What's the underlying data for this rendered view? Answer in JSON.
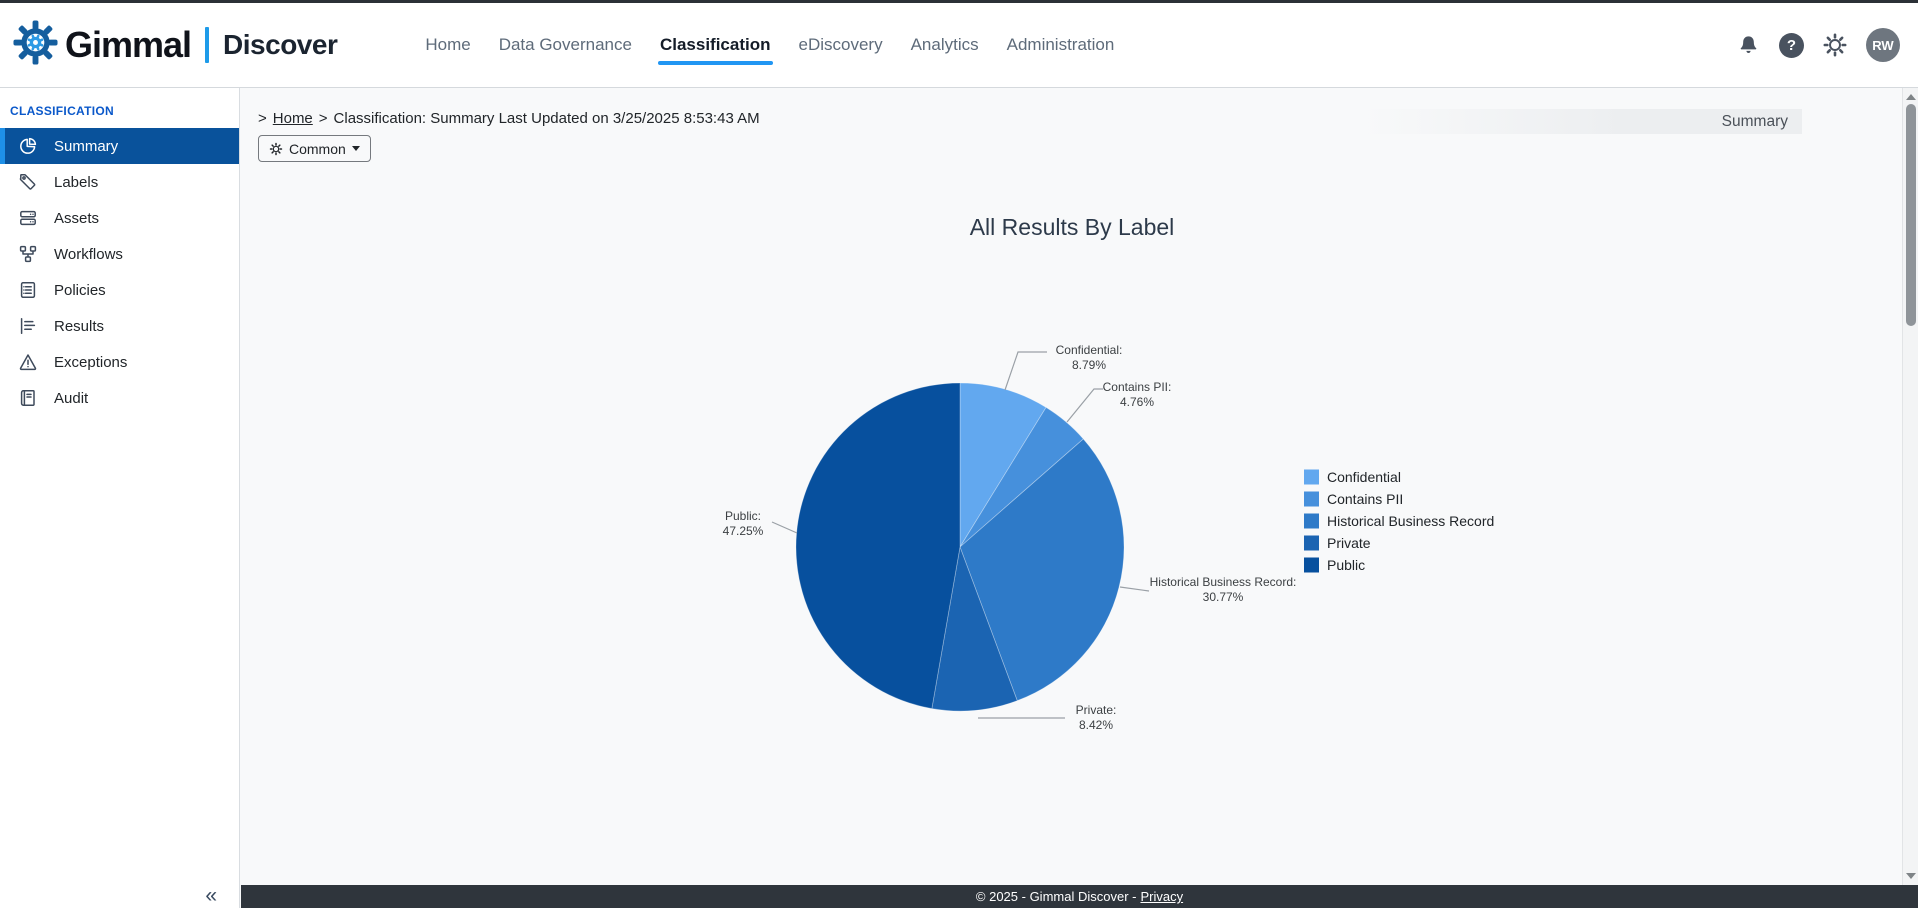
{
  "brand": {
    "name": "Gimmal",
    "product": "Discover"
  },
  "nav": {
    "items": [
      {
        "label": "Home",
        "active": false
      },
      {
        "label": "Data Governance",
        "active": false
      },
      {
        "label": "Classification",
        "active": true
      },
      {
        "label": "eDiscovery",
        "active": false
      },
      {
        "label": "Analytics",
        "active": false
      },
      {
        "label": "Administration",
        "active": false
      }
    ]
  },
  "topbar": {
    "avatar_initials": "RW"
  },
  "sidebar": {
    "section_label": "CLASSIFICATION",
    "items": [
      {
        "label": "Summary",
        "icon": "pie-chart",
        "active": true
      },
      {
        "label": "Labels",
        "icon": "tag",
        "active": false
      },
      {
        "label": "Assets",
        "icon": "server",
        "active": false
      },
      {
        "label": "Workflows",
        "icon": "workflow",
        "active": false
      },
      {
        "label": "Policies",
        "icon": "clipboard-list",
        "active": false
      },
      {
        "label": "Results",
        "icon": "bar-chart",
        "active": false
      },
      {
        "label": "Exceptions",
        "icon": "warning-triangle",
        "active": false
      },
      {
        "label": "Audit",
        "icon": "book",
        "active": false
      }
    ],
    "collapse_glyph": "«"
  },
  "breadcrumb": {
    "leading": ">",
    "home": "Home",
    "separator": ">",
    "current": "Classification: Summary Last Updated on 3/25/2025 8:53:43 AM"
  },
  "page_tab_label": "Summary",
  "toolbar": {
    "common_label": "Common"
  },
  "chart_data": {
    "type": "pie",
    "title": "All Results By Label",
    "categories": [
      "Confidential",
      "Contains PII",
      "Historical Business Record",
      "Private",
      "Public"
    ],
    "values": [
      8.79,
      4.76,
      30.77,
      8.42,
      47.25
    ],
    "value_suffix": "%",
    "colors": [
      "#62A8EF",
      "#4690DC",
      "#2E7AC8",
      "#1B64B2",
      "#07509E"
    ],
    "legend_position": "right",
    "start_angle_deg": 0,
    "direction": "clockwise"
  },
  "footer": {
    "copyright": "© 2025 - Gimmal Discover -",
    "privacy_label": "Privacy"
  }
}
